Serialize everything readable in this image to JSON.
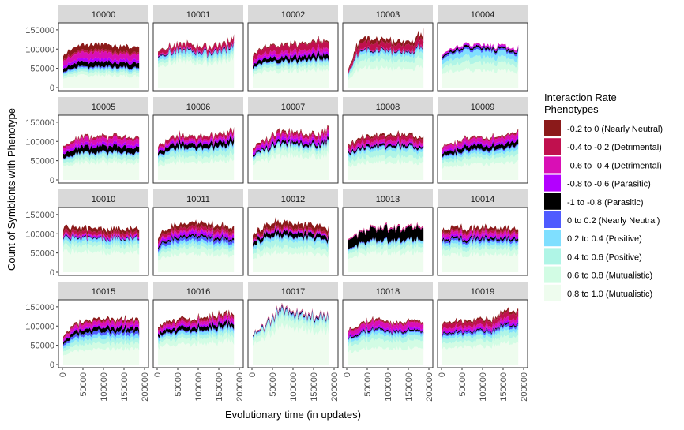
{
  "chart_data": {
    "type": "area",
    "subtype": "stacked-area small multiples (facet grid 4x5)",
    "xlabel": "Evolutionary time (in updates)",
    "ylabel": "Count of Symbionts with Phenotype",
    "xlim": [
      0,
      200000
    ],
    "ylim": [
      0,
      160000
    ],
    "x_ticks": [
      "0",
      "50000",
      "100000",
      "150000",
      "200000"
    ],
    "y_ticks": [
      "0",
      "50000",
      "100000",
      "150000"
    ],
    "grid": false,
    "legend": {
      "title": "Interaction Rate\n Phenotypes",
      "placement": "right",
      "entries": [
        {
          "label": "-0.2 to 0 (Nearly Neutral)",
          "color": "#8B1A1A"
        },
        {
          "label": "-0.4 to -0.2 (Detrimental)",
          "color": "#C0104E"
        },
        {
          "label": "-0.6 to -0.4 (Detrimental)",
          "color": "#D90FB5"
        },
        {
          "label": "-0.8 to -0.6 (Parasitic)",
          "color": "#B300FF"
        },
        {
          "label": "-1 to -0.8 (Parasitic)",
          "color": "#000000"
        },
        {
          "label": "0 to 0.2 (Nearly Neutral)",
          "color": "#4F5BFF"
        },
        {
          "label": "0.2 to 0.4 (Positive)",
          "color": "#7FDFFF"
        },
        {
          "label": "0.4 to 0.6 (Positive)",
          "color": "#AFF5E6"
        },
        {
          "label": "0.6 to 0.8 (Mutualistic)",
          "color": "#D2FCE4"
        },
        {
          "label": "0.8 to 1.0 (Mutualistic)",
          "color": "#EEFCEE"
        }
      ]
    },
    "facets": [
      {
        "title": "10000",
        "total": [
          85000,
          110000,
          112000,
          115000,
          110000,
          108000,
          108000
        ],
        "bands": [
          15000,
          5000,
          15000,
          8000,
          12000,
          3000,
          5000,
          6000,
          8000,
          30000
        ]
      },
      {
        "title": "10001",
        "total": [
          100000,
          108000,
          112000,
          110000,
          108000,
          115000,
          135000
        ],
        "bands": [
          2000,
          10000,
          3000,
          1000,
          2000,
          2000,
          8000,
          8000,
          10000,
          65000
        ]
      },
      {
        "title": "10002",
        "total": [
          85000,
          108000,
          112000,
          115000,
          118000,
          120000,
          125000
        ],
        "bands": [
          3000,
          15000,
          8000,
          6000,
          10000,
          2000,
          5000,
          8000,
          10000,
          40000
        ]
      },
      {
        "title": "10003",
        "total": [
          40000,
          130000,
          128000,
          125000,
          120000,
          118000,
          145000
        ],
        "bands": [
          10000,
          15000,
          3000,
          0,
          2000,
          2000,
          8000,
          15000,
          20000,
          50000
        ]
      },
      {
        "title": "10004",
        "total": [
          90000,
          105000,
          112000,
          115000,
          110000,
          108000,
          100000
        ],
        "bands": [
          0,
          0,
          3000,
          3000,
          5000,
          5000,
          15000,
          15000,
          20000,
          45000
        ]
      },
      {
        "title": "10005",
        "total": [
          85000,
          110000,
          115000,
          112000,
          115000,
          112000,
          110000
        ],
        "bands": [
          2000,
          5000,
          12000,
          8000,
          15000,
          2000,
          5000,
          10000,
          10000,
          45000
        ]
      },
      {
        "title": "10006",
        "total": [
          90000,
          110000,
          118000,
          115000,
          118000,
          120000,
          135000
        ],
        "bands": [
          2000,
          8000,
          6000,
          6000,
          12000,
          2000,
          8000,
          15000,
          15000,
          50000
        ]
      },
      {
        "title": "10007",
        "total": [
          85000,
          100000,
          130000,
          128000,
          125000,
          118000,
          140000
        ],
        "bands": [
          3000,
          6000,
          8000,
          8000,
          6000,
          2000,
          5000,
          8000,
          15000,
          60000
        ]
      },
      {
        "title": "10008",
        "total": [
          90000,
          112000,
          118000,
          115000,
          120000,
          118000,
          110000
        ],
        "bands": [
          5000,
          10000,
          8000,
          3000,
          5000,
          2000,
          8000,
          15000,
          15000,
          45000
        ]
      },
      {
        "title": "10009",
        "total": [
          90000,
          100000,
          110000,
          112000,
          110000,
          115000,
          125000
        ],
        "bands": [
          2000,
          3000,
          10000,
          6000,
          10000,
          3000,
          8000,
          10000,
          15000,
          40000
        ]
      },
      {
        "title": "10010",
        "total": [
          115000,
          118000,
          115000,
          113000,
          113000,
          112000,
          112000
        ],
        "bands": [
          10000,
          8000,
          3000,
          3000,
          2000,
          2000,
          8000,
          10000,
          15000,
          50000
        ]
      },
      {
        "title": "10011",
        "total": [
          95000,
          120000,
          125000,
          128000,
          125000,
          122000,
          115000
        ],
        "bands": [
          10000,
          8000,
          5000,
          8000,
          5000,
          8000,
          8000,
          10000,
          15000,
          45000
        ]
      },
      {
        "title": "10012",
        "total": [
          100000,
          120000,
          132000,
          130000,
          125000,
          122000,
          115000
        ],
        "bands": [
          12000,
          5000,
          3000,
          3000,
          10000,
          2000,
          8000,
          15000,
          15000,
          45000
        ]
      },
      {
        "title": "10013",
        "total": [
          85000,
          108000,
          118000,
          120000,
          118000,
          118000,
          118000
        ],
        "bands": [
          0,
          2000,
          2000,
          0,
          30000,
          2000,
          5000,
          10000,
          15000,
          50000
        ]
      },
      {
        "title": "10014",
        "total": [
          110000,
          118000,
          115000,
          118000,
          115000,
          118000,
          110000
        ],
        "bands": [
          8000,
          5000,
          8000,
          5000,
          5000,
          5000,
          8000,
          10000,
          15000,
          45000
        ]
      },
      {
        "title": "10015",
        "total": [
          75000,
          108000,
          118000,
          120000,
          118000,
          120000,
          115000
        ],
        "bands": [
          5000,
          3000,
          10000,
          5000,
          10000,
          8000,
          10000,
          12000,
          15000,
          40000
        ]
      },
      {
        "title": "10016",
        "total": [
          100000,
          115000,
          118000,
          120000,
          128000,
          132000,
          130000
        ],
        "bands": [
          5000,
          5000,
          8000,
          5000,
          10000,
          3000,
          8000,
          10000,
          15000,
          55000
        ]
      },
      {
        "title": "10017",
        "total": [
          80000,
          105000,
          145000,
          140000,
          135000,
          132000,
          135000
        ],
        "bands": [
          1000,
          1000,
          1000,
          1000,
          3000,
          2000,
          5000,
          10000,
          20000,
          90000
        ]
      },
      {
        "title": "10018",
        "total": [
          90000,
          108000,
          118000,
          115000,
          112000,
          120000,
          108000
        ],
        "bands": [
          3000,
          3000,
          12000,
          5000,
          3000,
          3000,
          8000,
          12000,
          20000,
          40000
        ]
      },
      {
        "title": "10019",
        "total": [
          110000,
          115000,
          112000,
          118000,
          120000,
          140000,
          145000
        ],
        "bands": [
          5000,
          12000,
          8000,
          5000,
          3000,
          5000,
          8000,
          12000,
          15000,
          50000
        ]
      }
    ]
  }
}
